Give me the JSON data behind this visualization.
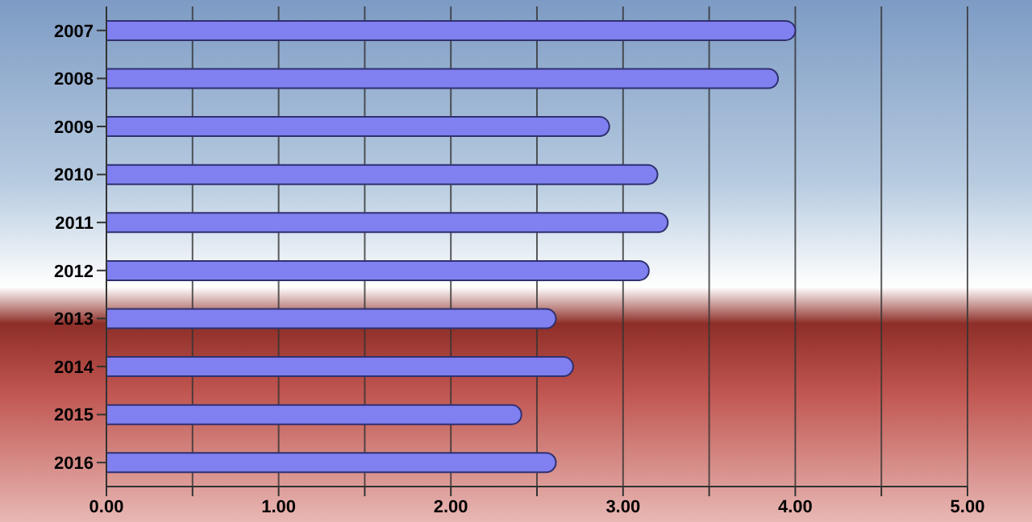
{
  "chart_data": {
    "type": "bar",
    "orientation": "horizontal",
    "categories": [
      "2007",
      "2008",
      "2009",
      "2010",
      "2011",
      "2012",
      "2013",
      "2014",
      "2015",
      "2016"
    ],
    "values": [
      4.0,
      3.9,
      2.92,
      3.2,
      3.26,
      3.15,
      2.61,
      2.71,
      2.41,
      2.61
    ],
    "color": "#8080f0",
    "xlim": [
      0,
      5
    ],
    "xticks": [
      {
        "value": 0,
        "label": "0.00"
      },
      {
        "value": 0.5,
        "label": null
      },
      {
        "value": 1,
        "label": "1.00"
      },
      {
        "value": 1.5,
        "label": null
      },
      {
        "value": 2,
        "label": "2.00"
      },
      {
        "value": 2.5,
        "label": null
      },
      {
        "value": 3,
        "label": "3.00"
      },
      {
        "value": 3.5,
        "label": null
      },
      {
        "value": 4,
        "label": "4.00"
      },
      {
        "value": 4.5,
        "label": null
      },
      {
        "value": 5,
        "label": "5.00"
      }
    ],
    "grid": "x"
  }
}
